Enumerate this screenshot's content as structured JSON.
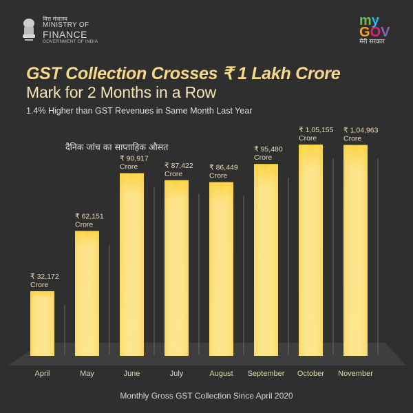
{
  "header": {
    "ministry": {
      "hindi": "वित्त मंत्रालय",
      "line1": "MINISTRY OF",
      "line2": "FINANCE",
      "line3": "GOVERNMENT OF INDIA",
      "icon": "national-emblem-icon"
    },
    "mygov": {
      "my": [
        "m",
        "y"
      ],
      "gov": [
        "G",
        "O",
        "V"
      ],
      "hindi": "मेरी सरकार",
      "icon": "mygov-logo"
    }
  },
  "title": "GST Collection Crosses ₹ 1 Lakh Crore",
  "subtitle": "Mark for 2 Months in a Row",
  "tagline": "1.4% Higher than GST Revenues in Same Month Last Year",
  "hindi_caption": "दैनिक जांच का साप्ताहिक औसत",
  "footer": "Monthly Gross GST Collection Since April 2020",
  "colors": {
    "background": "#2f2f2f",
    "bar_top": "#fcd43c",
    "bar_mid": "#fde58d",
    "bar_label": "#e8dcb8",
    "title": "#f5d98a"
  },
  "chart_data": {
    "type": "bar",
    "title": "Monthly Gross GST Collection Since April 2020",
    "xlabel": "",
    "ylabel": "",
    "unit": "Crore",
    "currency": "₹",
    "categories": [
      "April",
      "May",
      "June",
      "July",
      "August",
      "September",
      "October",
      "November"
    ],
    "values": [
      32172,
      62151,
      90917,
      87422,
      86449,
      95480,
      105155,
      104963
    ],
    "value_labels": [
      "₹ 32,172",
      "₹ 62,151",
      "₹ 90,917",
      "₹ 87,422",
      "₹ 86,449",
      "₹ 95,480",
      "₹ 1,05,155",
      "₹ 1,04,963"
    ],
    "value_suffix": "Crore",
    "ylim": [
      0,
      105155
    ],
    "grid": false,
    "legend": "none"
  }
}
